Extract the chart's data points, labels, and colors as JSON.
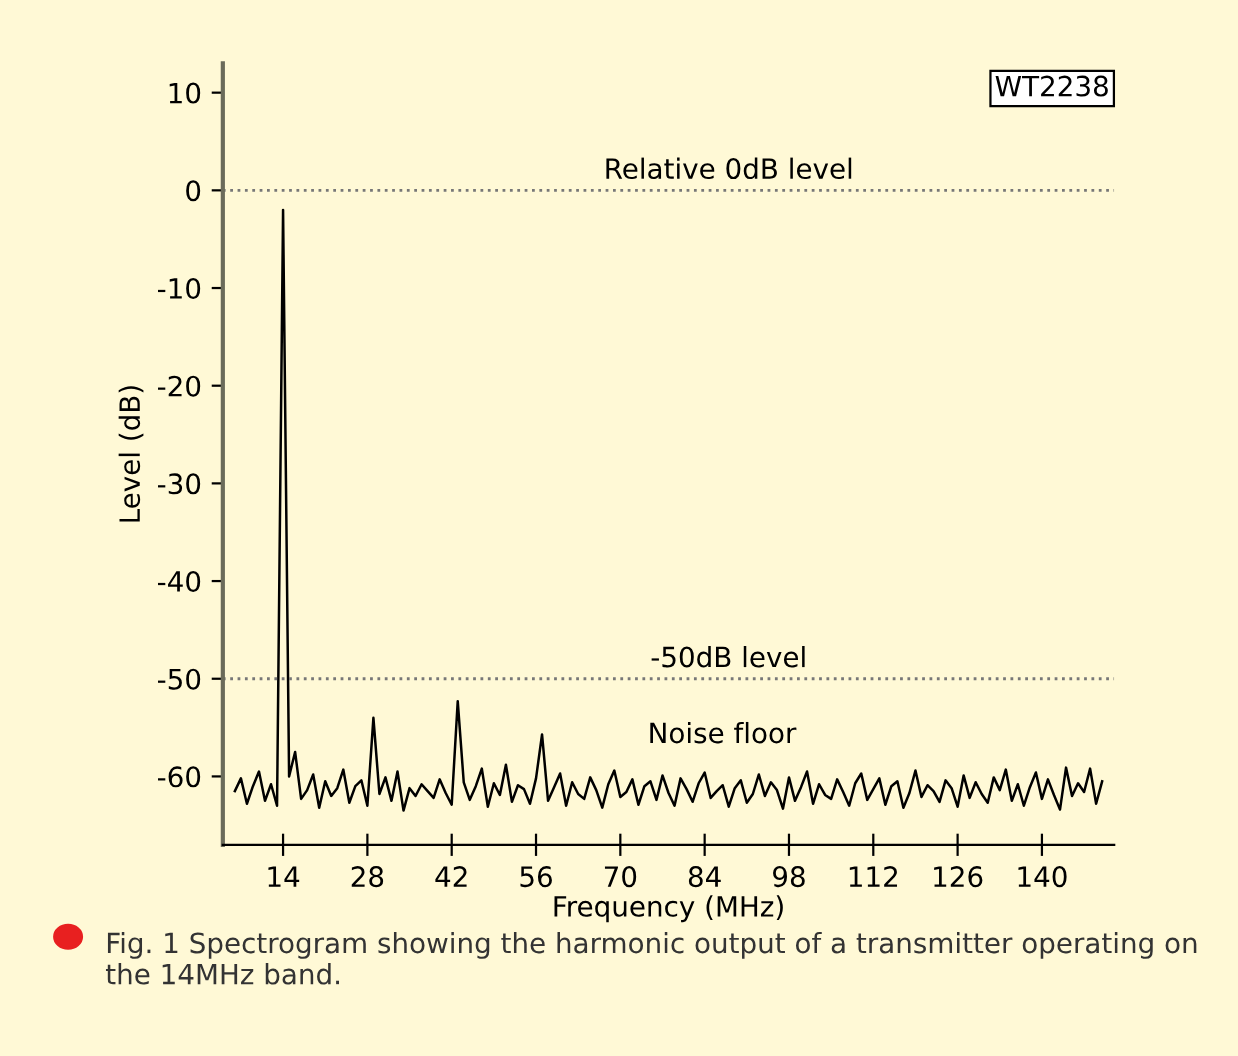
{
  "chart_data": {
    "type": "line",
    "xlabel": "Frequency (MHz)",
    "ylabel": "Level (dB)",
    "x": [
      6,
      7,
      8,
      9,
      10,
      11,
      12,
      13,
      14,
      15,
      16,
      17,
      18,
      19,
      20,
      21,
      22,
      23,
      24,
      25,
      26,
      27,
      28,
      29,
      30,
      31,
      32,
      33,
      34,
      35,
      36,
      37,
      38,
      39,
      40,
      41,
      42,
      43,
      44,
      45,
      46,
      47,
      48,
      49,
      50,
      51,
      52,
      53,
      54,
      55,
      56,
      57,
      58,
      59,
      60,
      61,
      62,
      63,
      64,
      65,
      66,
      67,
      68,
      69,
      70,
      71,
      72,
      73,
      74,
      75,
      76,
      77,
      78,
      79,
      80,
      81,
      82,
      83,
      84,
      85,
      86,
      87,
      88,
      89,
      90,
      91,
      92,
      93,
      94,
      95,
      96,
      97,
      98,
      99,
      100,
      101,
      102,
      103,
      104,
      105,
      106,
      107,
      108,
      109,
      110,
      111,
      112,
      113,
      114,
      115,
      116,
      117,
      118,
      119,
      120,
      121,
      122,
      123,
      124,
      125,
      126,
      127,
      128,
      129,
      130,
      131,
      132,
      133,
      134,
      135,
      136,
      137,
      138,
      139,
      140,
      141,
      142,
      143,
      144,
      145,
      146,
      147,
      148,
      149,
      150
    ],
    "series": [
      {
        "color": "#000000",
        "values": [
          -61.5,
          -60.2,
          -62.8,
          -61,
          -59.5,
          -62.5,
          -60.8,
          -63,
          -2,
          -60,
          -57.5,
          -62.3,
          -61.4,
          -59.8,
          -63.2,
          -60.5,
          -62,
          -61.2,
          -59.3,
          -62.7,
          -61,
          -60.4,
          -63,
          -54,
          -61.8,
          -60.1,
          -62.5,
          -59.5,
          -63.5,
          -61.2,
          -62,
          -60.8,
          -61.5,
          -62.2,
          -60.3,
          -61.7,
          -62.9,
          -52.3,
          -60.6,
          -62.4,
          -61,
          -59.2,
          -63.1,
          -60.7,
          -61.9,
          -58.8,
          -62.6,
          -60.9,
          -61.3,
          -62.8,
          -60.2,
          -55.7,
          -62.5,
          -61.1,
          -59.7,
          -63,
          -60.6,
          -61.8,
          -62.3,
          -60.1,
          -61.4,
          -63.2,
          -60.8,
          -59.4,
          -62.1,
          -61.6,
          -60.3,
          -62.9,
          -61,
          -60.5,
          -62.4,
          -59.9,
          -61.7,
          -63,
          -60.2,
          -61.3,
          -62.6,
          -60.7,
          -59.6,
          -62.2,
          -61.5,
          -60.9,
          -63.1,
          -61.2,
          -60.4,
          -62.7,
          -61.8,
          -59.8,
          -62,
          -60.6,
          -61.4,
          -63.3,
          -60.1,
          -62.5,
          -61.1,
          -59.5,
          -62.8,
          -60.8,
          -61.9,
          -62.3,
          -60.3,
          -61.6,
          -63,
          -60.7,
          -59.7,
          -62.4,
          -61.3,
          -60.2,
          -62.9,
          -61,
          -60.5,
          -63.2,
          -61.7,
          -59.4,
          -62.1,
          -60.9,
          -61.5,
          -62.6,
          -60.4,
          -61.2,
          -63.1,
          -59.9,
          -62.2,
          -60.6,
          -61.8,
          -62.7,
          -60.1,
          -61.4,
          -59.3,
          -62.5,
          -60.8,
          -63,
          -61.1,
          -59.6,
          -62.3,
          -60.3,
          -61.9,
          -63.4,
          -59.1,
          -62,
          -60.7,
          -61.6,
          -59.2,
          -62.8,
          -60.5
        ]
      }
    ],
    "xlim": [
      4,
      152
    ],
    "ylim": [
      -67,
      13
    ],
    "xticks": [
      14,
      28,
      42,
      56,
      70,
      84,
      98,
      112,
      126,
      140
    ],
    "yticks": [
      10,
      0,
      -10,
      -20,
      -30,
      -40,
      -50,
      -60
    ],
    "ref_lines": [
      {
        "axis": "y",
        "value": 0,
        "label": "Relative 0dB level",
        "color": "#777777",
        "line_style": "dotted"
      },
      {
        "axis": "y",
        "value": -50,
        "label": "-50dB level",
        "color": "#777777",
        "line_style": "dotted"
      }
    ],
    "annotations": [
      "WT2238",
      "Noise floor",
      "Fig. 1 Spectrogram showing the harmonic output of a transmitter operating on the 14MHz band."
    ],
    "grid": false,
    "marker": "none",
    "line_style": "solid"
  }
}
